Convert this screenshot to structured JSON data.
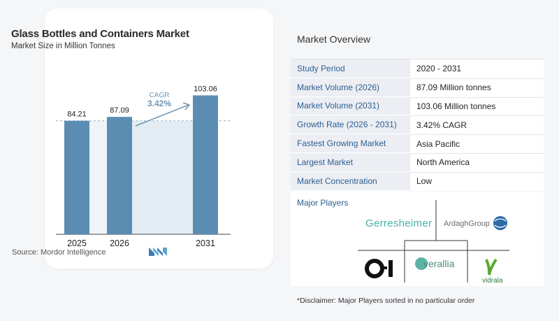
{
  "chart": {
    "title": "Glass Bottles and Containers Market",
    "subtitle": "Market Size in Million Tonnes",
    "source": "Source:  Mordor Intelligence",
    "cagr_label": "CAGR",
    "cagr_value": "3.42%"
  },
  "chart_data": {
    "type": "bar",
    "title": "Glass Bottles and Containers Market",
    "subtitle": "Market Size in Million Tonnes",
    "categories": [
      "2025",
      "2026",
      "2031"
    ],
    "values": [
      84.21,
      87.09,
      103.06
    ],
    "value_labels": [
      "84.21",
      "87.09",
      "103.06"
    ],
    "ylim": [
      0,
      110
    ],
    "annotation": {
      "label": "CAGR",
      "value": "3.42%"
    },
    "grid": false,
    "colors": {
      "bar": "#5b8db3",
      "shade": "#e3ecf3",
      "dashed_line": "#8fb0c8",
      "annotation": "#6f96b4"
    }
  },
  "overview": {
    "title": "Market Overview",
    "rows": [
      {
        "key": "Study Period",
        "value": "2020 - 2031"
      },
      {
        "key": "Market Volume (2026)",
        "value": "87.09 Million tonnes"
      },
      {
        "key": "Market Volume (2031)",
        "value": "103.06 Million tonnes"
      },
      {
        "key": "Growth Rate (2026 - 2031)",
        "value": "3.42% CAGR"
      },
      {
        "key": "Fastest Growing Market",
        "value": "Asia Pacific"
      },
      {
        "key": "Largest Market",
        "value": "North America"
      },
      {
        "key": "Market Concentration",
        "value": "Low"
      }
    ]
  },
  "players": {
    "label": "Major Players",
    "logos": [
      "Gerresheimer",
      "ArdaghGroup",
      "O-I",
      "verallia",
      "vidrala"
    ]
  },
  "disclaimer": "*Disclaimer: Major Players sorted in no particular order",
  "colors": {
    "key_text": "#2c5e91",
    "key_bg": "#eceef3",
    "page_bg": "#f5f6f8"
  }
}
